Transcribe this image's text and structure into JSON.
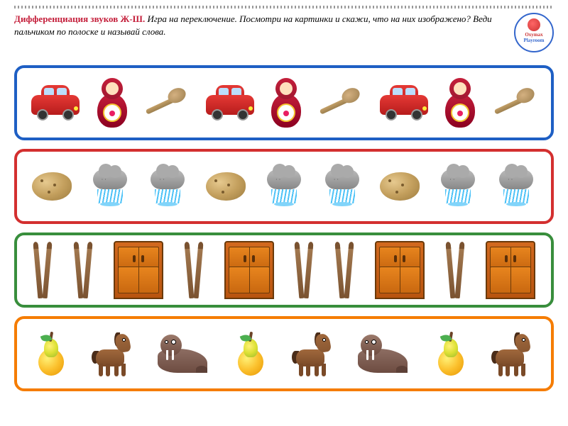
{
  "header": {
    "title": "Дифференциация звуков Ж-Ш.",
    "instructions": "Игра на переключение. Посмотри на картинки и скажи, что на них изображено? Веди пальчиком по полоске и называй слова."
  },
  "logo": {
    "line1": "Oxymax",
    "line2": "Playroom"
  },
  "rows": [
    {
      "border_color": "#1e5fc4",
      "items": [
        "car",
        "matryoshka",
        "spoon",
        "car",
        "matryoshka",
        "spoon",
        "car",
        "matryoshka",
        "spoon"
      ],
      "item_labels": {
        "car": "машина",
        "matryoshka": "матрёшка",
        "spoon": "ложка"
      }
    },
    {
      "border_color": "#d32f2f",
      "items": [
        "potato",
        "cloud",
        "cloud",
        "potato",
        "cloud",
        "cloud",
        "potato",
        "cloud",
        "cloud"
      ],
      "item_labels": {
        "potato": "картошка",
        "cloud": "дождик"
      }
    },
    {
      "border_color": "#388e3c",
      "items": [
        "skis",
        "skis",
        "wardrobe",
        "skis",
        "wardrobe",
        "skis",
        "skis",
        "wardrobe",
        "skis",
        "wardrobe"
      ],
      "item_labels": {
        "skis": "лыжи",
        "wardrobe": "шкаф"
      }
    },
    {
      "border_color": "#f57c00",
      "items": [
        "pear",
        "horse",
        "walrus",
        "pear",
        "horse",
        "walrus",
        "pear",
        "horse"
      ],
      "item_labels": {
        "pear": "груша",
        "horse": "лошадка",
        "walrus": "морж"
      }
    }
  ],
  "colors": {
    "title_color": "#c41e3a",
    "background": "#ffffff"
  }
}
